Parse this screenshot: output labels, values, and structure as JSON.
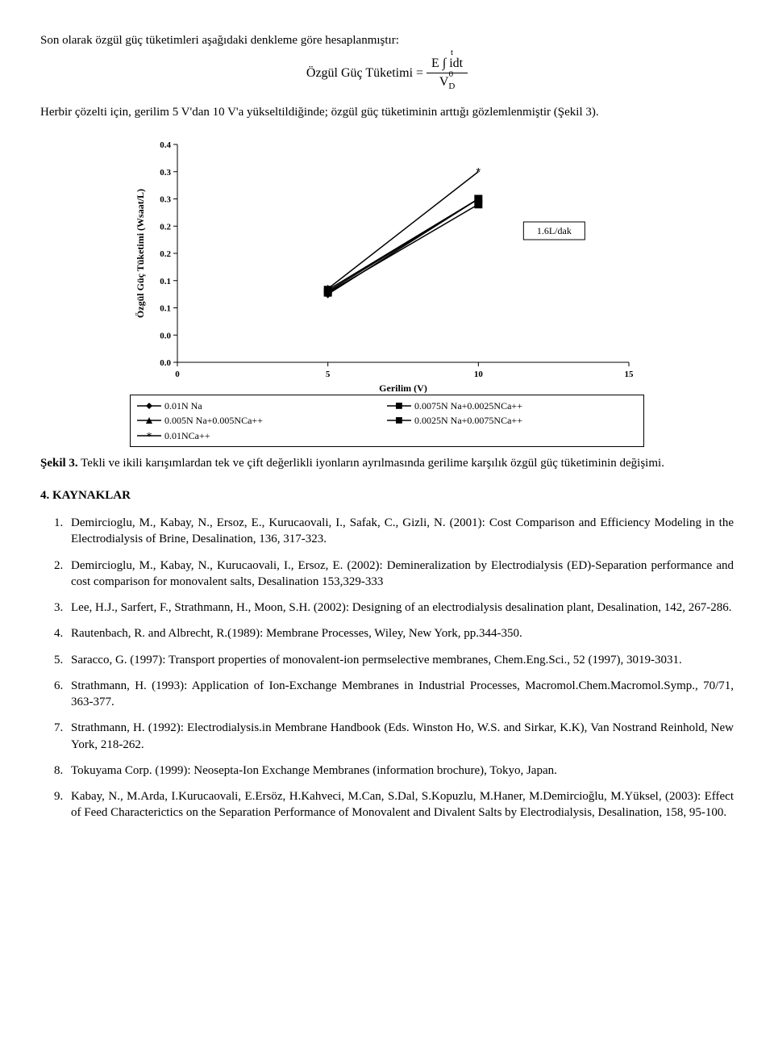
{
  "intro_para": "Son olarak özgül güç tüketimleri aşağıdaki denkleme göre hesaplanmıştır:",
  "formula_lhs": "Özgül Güç Tüketimi =",
  "formula_num": "E ∫ idt",
  "formula_t_top": "t",
  "formula_t_bottom": "0",
  "formula_den": "V",
  "formula_den_sub": "D",
  "after_formula": "Herbir çözelti için, gerilim 5 V'dan 10 V'a yükseltildiğinde; özgül güç tüketiminin arttığı gözlemlenmiştir (Şekil 3).",
  "chart": {
    "type": "line",
    "x_label": "Gerilim (V)",
    "y_label": "Özgül Güç Tüketimi (Wsaat/L)",
    "x_ticks": [
      0,
      5,
      10,
      15
    ],
    "y_ticks": [
      0.0,
      0.0,
      0.1,
      0.1,
      0.2,
      0.2,
      0.3,
      0.3,
      0.4
    ],
    "y_tick_labels": [
      "0.0",
      "0.0",
      "0.1",
      "0.1",
      "0.2",
      "0.2",
      "0.3",
      "0.3",
      "0.4"
    ],
    "xlim": [
      0,
      15
    ],
    "ylim": [
      0,
      0.4
    ],
    "annotation": "1.6L/dak",
    "series": [
      {
        "label": "0.01N Na",
        "marker": "diamond",
        "color": "#000000",
        "points": [
          [
            5,
            0.125
          ],
          [
            10,
            0.3
          ]
        ]
      },
      {
        "label": "0.0075N Na+0.0025NCa++",
        "marker": "square",
        "color": "#000000",
        "points": [
          [
            5,
            0.128
          ],
          [
            10,
            0.29
          ]
        ]
      },
      {
        "label": "0.005N Na+0.005NCa++",
        "marker": "triangle",
        "color": "#000000",
        "points": [
          [
            5,
            0.13
          ],
          [
            10,
            0.3
          ]
        ]
      },
      {
        "label": "0.0025N Na+0.0075NCa++",
        "marker": "square",
        "color": "#000000",
        "points": [
          [
            5,
            0.133
          ],
          [
            10,
            0.3
          ]
        ]
      },
      {
        "label": "0.01NCa++",
        "marker": "star",
        "color": "#000000",
        "points": [
          [
            5,
            0.135
          ],
          [
            10,
            0.35
          ]
        ]
      }
    ],
    "legend_order": [
      0,
      1,
      2,
      3,
      4
    ],
    "background_color": "#ffffff",
    "axis_color": "#000000",
    "line_width": 1.5,
    "marker_size": 6,
    "fontsize_axis": 12,
    "fontsize_ticks": 11
  },
  "caption_title": "Şekil 3.",
  "caption_text": " Tekli ve ikili karışımlardan tek ve çift değerlikli iyonların ayrılmasında gerilime karşılık özgül güç tüketiminin değişimi.",
  "refs_head": "4. KAYNAKLAR",
  "refs": [
    "Demircioglu, M., Kabay, N., Ersoz, E., Kurucaovali, I., Safak, C., Gizli, N. (2001): Cost Comparison and Efficiency Modeling in the Electrodialysis of Brine, Desalination, 136, 317-323.",
    "Demircioglu, M., Kabay, N., Kurucaovali, I., Ersoz, E. (2002): Demineralization by Electrodialysis (ED)-Separation performance and cost comparison for monovalent salts, Desalination 153,329-333",
    "Lee, H.J., Sarfert, F., Strathmann, H., Moon, S.H. (2002): Designing of an electrodialysis desalination plant, Desalination, 142, 267-286.",
    "Rautenbach, R. and Albrecht, R.(1989): Membrane Processes, Wiley, New York, pp.344-350.",
    "Saracco, G. (1997): Transport properties of monovalent-ion permselective membranes, Chem.Eng.Sci., 52 (1997), 3019-3031.",
    "Strathmann, H. (1993): Application of Ion-Exchange Membranes in Industrial Processes, Macromol.Chem.Macromol.Symp., 70/71, 363-377.",
    "Strathmann, H. (1992): Electrodialysis.in Membrane Handbook (Eds. Winston Ho, W.S. and Sirkar, K.K), Van Nostrand Reinhold, New York, 218-262.",
    "Tokuyama Corp. (1999): Neosepta-Ion Exchange Membranes (information brochure), Tokyo, Japan.",
    "Kabay, N., M.Arda, I.Kurucaovali, E.Ersöz, H.Kahveci, M.Can, S.Dal, S.Kopuzlu, M.Haner, M.Demircioğlu, M.Yüksel, (2003): Effect of Feed Characterictics on the Separation Performance of Monovalent and Divalent Salts by Electrodialysis, Desalination, 158, 95-100."
  ]
}
